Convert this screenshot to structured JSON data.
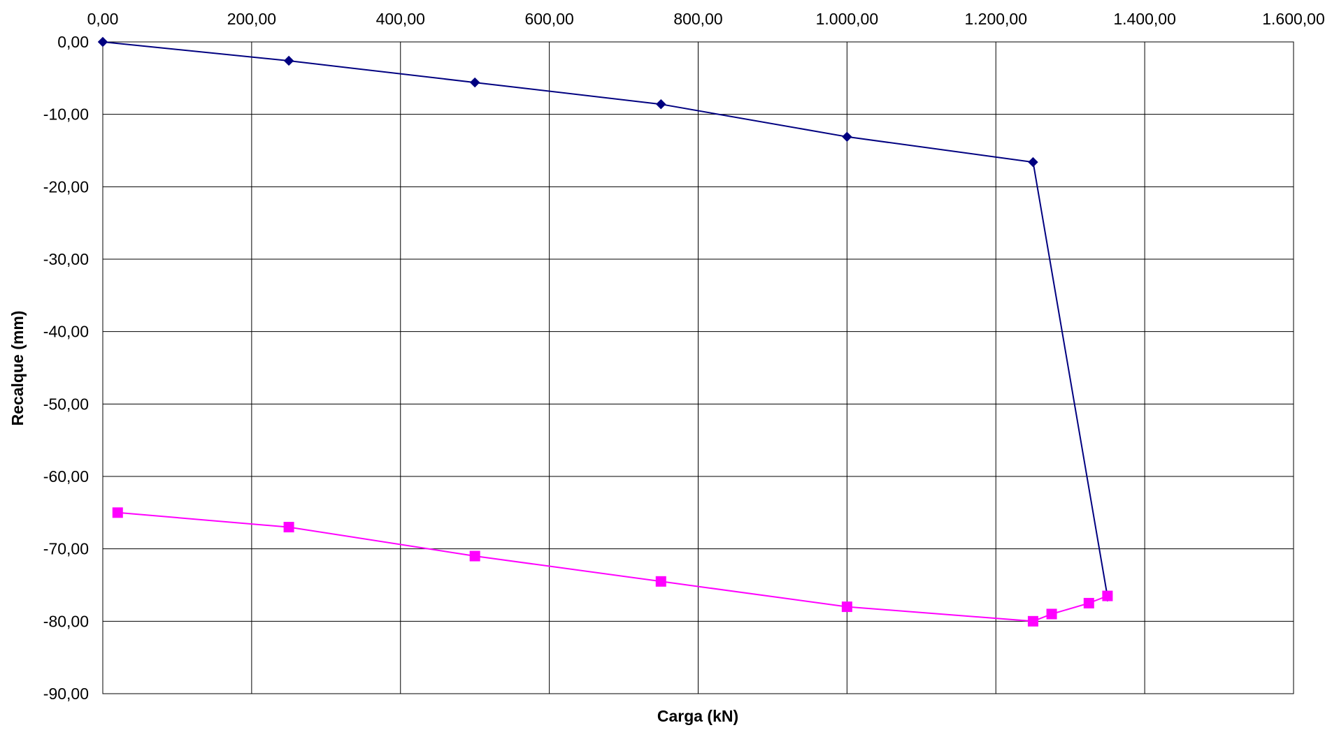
{
  "chart_data": {
    "type": "line",
    "title": "",
    "xlabel": "Carga (kN)",
    "ylabel": "Recalque (mm)",
    "x_axis_position": "top",
    "xlim": [
      0,
      1600
    ],
    "ylim": [
      -90,
      0
    ],
    "x_ticks": [
      0,
      200,
      400,
      600,
      800,
      1000,
      1200,
      1400,
      1600
    ],
    "x_tick_labels": [
      "0,00",
      "200,00",
      "400,00",
      "600,00",
      "800,00",
      "1.000,00",
      "1.200,00",
      "1.400,00",
      "1.600,00"
    ],
    "y_ticks": [
      0,
      -10,
      -20,
      -30,
      -40,
      -50,
      -60,
      -70,
      -80,
      -90
    ],
    "y_tick_labels": [
      "0,00",
      "-10,00",
      "-20,00",
      "-30,00",
      "-40,00",
      "-50,00",
      "-60,00",
      "-70,00",
      "-80,00",
      "-90,00"
    ],
    "grid": true,
    "legend": "none",
    "series": [
      {
        "color": "#000080",
        "marker": "diamond",
        "x": [
          0,
          250,
          500,
          750,
          1000,
          1250,
          1350
        ],
        "y": [
          0,
          -2.6,
          -5.6,
          -8.6,
          -13.1,
          -16.6,
          -76.6
        ]
      },
      {
        "color": "#FF00FF",
        "marker": "square",
        "x": [
          20,
          250,
          500,
          750,
          1000,
          1250,
          1275,
          1325,
          1350
        ],
        "y": [
          -65,
          -67,
          -71,
          -74.5,
          -78,
          -80,
          -79,
          -77.5,
          -76.5
        ]
      }
    ]
  }
}
